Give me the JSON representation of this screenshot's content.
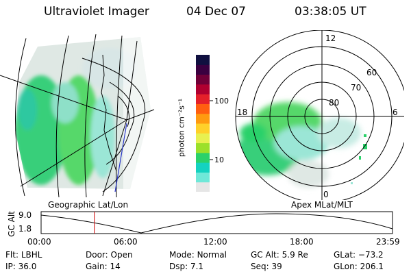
{
  "header": {
    "instrument": "Ultraviolet Imager",
    "date": "04 Dec 07",
    "time": "03:38:05 UT"
  },
  "geo_map": {
    "label": "Geographic Lat/Lon"
  },
  "colorbar": {
    "unit_label": "photon cm⁻²s⁻¹",
    "ticks": [
      {
        "value": 100,
        "label": "100"
      },
      {
        "value": 10,
        "label": "10"
      }
    ],
    "colors": [
      "#e6e6e6",
      "#6fe8d8",
      "#14d2c0",
      "#2ad16a",
      "#9be02a",
      "#e8f050",
      "#ffd02a",
      "#ff9a10",
      "#ff5e10",
      "#e4202a",
      "#b00030",
      "#700038",
      "#3a0040",
      "#101040"
    ]
  },
  "polar_map": {
    "label": "Apex MLat/MLT",
    "mlt_labels": {
      "top": "12",
      "right": "6",
      "bottom": "0",
      "left": "18"
    },
    "lat_labels": [
      "60",
      "70",
      "80"
    ]
  },
  "altitude_plot": {
    "ylabel": "GC Alt",
    "yticks": [
      "9.0",
      "1.8"
    ],
    "xticks": [
      "00:00",
      "06:00",
      "12:00",
      "18:00",
      "23:59"
    ],
    "marker_time_hours": 3.635
  },
  "status": {
    "filter": {
      "label": "Flt:",
      "value": "LBHL"
    },
    "door": {
      "label": "Door:",
      "value": "Open"
    },
    "mode": {
      "label": "Mode:",
      "value": "Normal"
    },
    "gc_alt": {
      "label": "GC Alt:",
      "value": "5.9 Re"
    },
    "glat": {
      "label": "GLat:",
      "value": "−73.2"
    },
    "ip": {
      "label": "IP:",
      "value": "36.0"
    },
    "gain": {
      "label": "Gain:",
      "value": "14"
    },
    "dsp": {
      "label": "Dsp:",
      "value": "7.1"
    },
    "seq": {
      "label": "Seq:",
      "value": "39"
    },
    "glon": {
      "label": "GLon:",
      "value": "206.1"
    }
  }
}
